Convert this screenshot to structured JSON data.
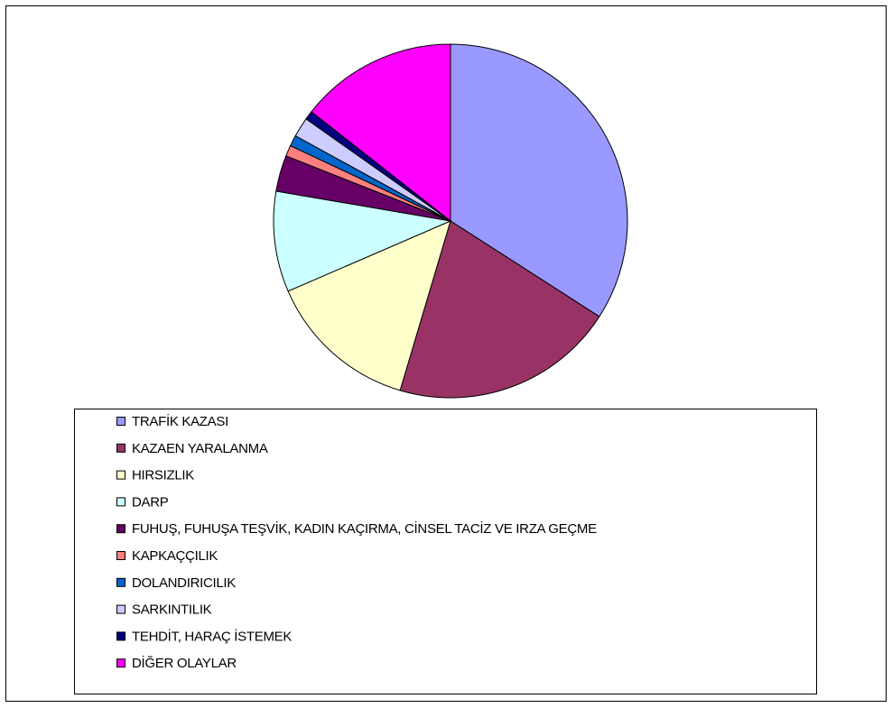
{
  "chart_data": {
    "type": "pie",
    "categories": [
      "TRAFİK KAZASI",
      "KAZAEN YARALANMA",
      "HIRSIZLIK",
      "DARP",
      "FUHUŞ, FUHUŞA TEŞVİK, KADIN KAÇIRMA, CİNSEL TACİZ VE IRZA GEÇME",
      "KAPKAÇÇILIK",
      "DOLANDIRICILIK",
      "SARKINTILIK",
      "TEHDİT, HARAÇ İSTEMEK",
      "DİĞER OLAYLAR"
    ],
    "values": [
      34.1,
      20.5,
      13.9,
      9.2,
      3.3,
      1,
      1,
      1.8,
      0.8,
      14.4
    ],
    "colors": [
      "#9999ff",
      "#993366",
      "#ffffcc",
      "#ccffff",
      "#660066",
      "#ff8080",
      "#0066cc",
      "#ccccff",
      "#000080",
      "#ff00ff"
    ],
    "legend": "bottom"
  }
}
